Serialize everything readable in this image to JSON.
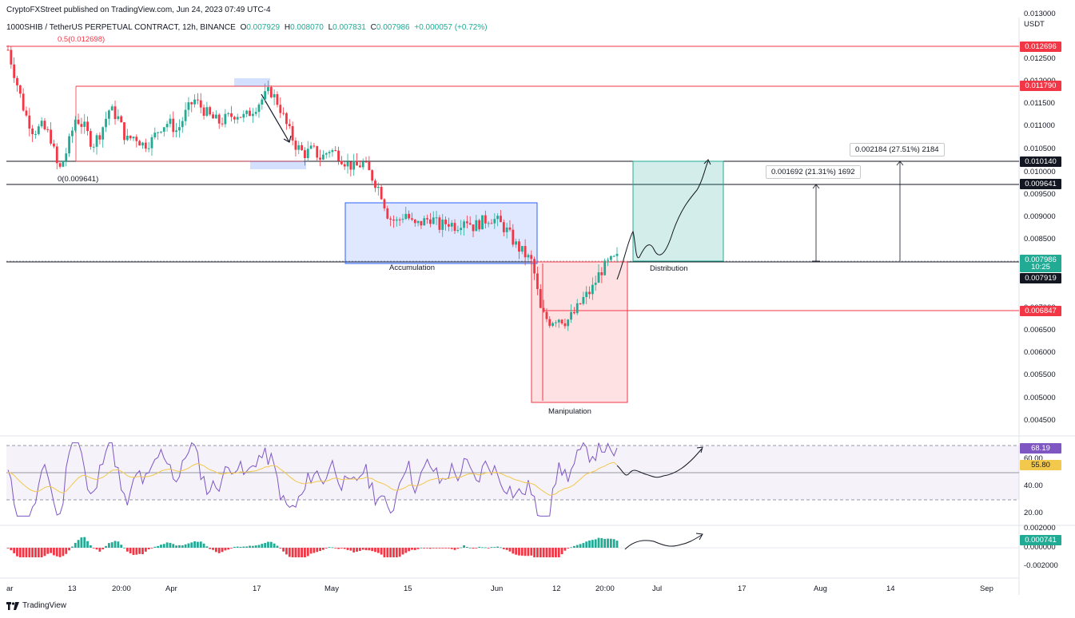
{
  "header": {
    "published": "CryptoFXStreet published on TradingView.com, Jun 24, 2023 07:49 UTC-4",
    "symbol": "1000SHIB / TetherUS PERPETUAL CONTRACT, 12h, BINANCE",
    "o_label": "O",
    "o_value": "0.007929",
    "h_label": "H",
    "h_value": "0.008070",
    "l_label": "L",
    "l_value": "0.007831",
    "c_label": "C",
    "c_value": "0.007986",
    "change": "+0.000057 (+0.72%)",
    "fib_05": "0.5(0.012698)",
    "fib_0": "0(0.009641)"
  },
  "currency": "USDT",
  "price_axis": {
    "ticks": [
      "0.013000",
      "0.012500",
      "0.012000",
      "0.011500",
      "0.011000",
      "0.010500",
      "0.010000",
      "0.009500",
      "0.009000",
      "0.008500",
      "0.007000",
      "0.006500",
      "0.006000",
      "0.005500",
      "0.005000",
      "0.004500"
    ]
  },
  "price_tags": [
    {
      "label": "0.012696",
      "color": "#f23645"
    },
    {
      "label": "0.011790",
      "color": "#f23645"
    },
    {
      "label": "0.010140",
      "color": "#131722"
    },
    {
      "label": "0.009641",
      "color": "#131722"
    },
    {
      "label": "0.007986",
      "color": "#22ab94"
    },
    {
      "label": "10:25",
      "color": "#22ab94"
    },
    {
      "label": "0.007919",
      "color": "#131722"
    },
    {
      "label": "0.006847",
      "color": "#f23645"
    }
  ],
  "rsi_axis": {
    "ticks": [
      "60.00",
      "40.00",
      "20.00"
    ],
    "rsi_tag": "68.19",
    "ma_tag": "55.80"
  },
  "macd_axis": {
    "ticks": [
      "0.002000",
      "0.000000",
      "-0.002000"
    ],
    "tag": "0.000741"
  },
  "time_axis": [
    "ar",
    "13",
    "20:00",
    "Apr",
    "17",
    "May",
    "15",
    "Jun",
    "12",
    "20:00",
    "Jul",
    "17",
    "Aug",
    "14",
    "Sep"
  ],
  "annotations": {
    "accumulation": "Accumulation",
    "manipulation": "Manipulation",
    "distribution": "Distribution",
    "measure1": "0.001692 (21.31%) 1692",
    "measure2": "0.002184 (27.51%) 2184"
  },
  "footer": {
    "brand": "TradingView"
  },
  "colors": {
    "up": "#22ab94",
    "down": "#f23645",
    "rsi": "#7e57c2",
    "rsi_ma": "#f2c94c",
    "accum": "#2962ff",
    "manip": "#f23645",
    "dist": "#22ab94"
  },
  "chart_data": {
    "type": "candlestick",
    "symbol": "1000SHIB/USDT",
    "interval": "12h",
    "last": {
      "open": 0.007929,
      "high": 0.00807,
      "low": 0.007831,
      "close": 0.007986
    },
    "close_path": [
      0.0126,
      0.0119,
      0.0112,
      0.0108,
      0.0109,
      0.0107,
      0.0099,
      0.0104,
      0.0111,
      0.0109,
      0.0105,
      0.0108,
      0.0113,
      0.0111,
      0.0106,
      0.0107,
      0.0105,
      0.0106,
      0.0109,
      0.011,
      0.0108,
      0.0112,
      0.0115,
      0.0113,
      0.0111,
      0.011,
      0.0111,
      0.0112,
      0.0111,
      0.0113,
      0.0115,
      0.0117,
      0.0114,
      0.0109,
      0.0105,
      0.0103,
      0.0104,
      0.0102,
      0.0104,
      0.0103,
      0.0101,
      0.01,
      0.0101,
      0.0098,
      0.0095,
      0.0089,
      0.0088,
      0.009,
      0.0087,
      0.0088,
      0.0089,
      0.0087,
      0.0088,
      0.0087,
      0.0089,
      0.0087,
      0.0088,
      0.0089,
      0.0088,
      0.0086,
      0.0083,
      0.0081,
      0.0079,
      0.0068,
      0.0066,
      0.0067,
      0.0066,
      0.0068,
      0.0071,
      0.0073,
      0.0077,
      0.0079,
      0.008
    ],
    "levels": {
      "fib_0.5": 0.012698,
      "resistance": 0.01179,
      "target2": 0.01014,
      "fib_0": 0.009641,
      "last_close": 0.007986,
      "support": 0.006847
    },
    "rsi": {
      "levels": [
        30,
        50,
        70
      ],
      "last": 68.19,
      "ma_last": 55.8
    },
    "macd_hist_last": 0.000741
  }
}
